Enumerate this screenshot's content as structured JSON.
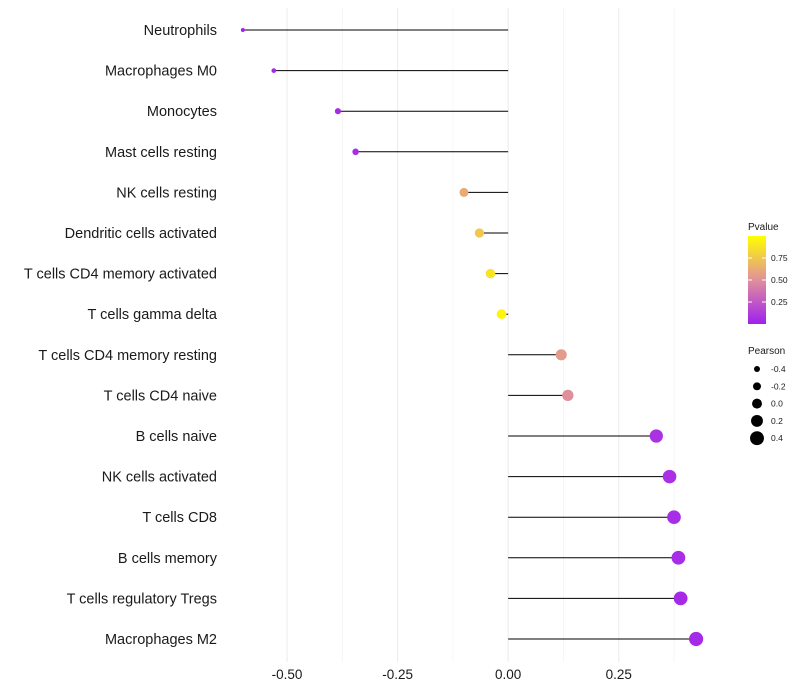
{
  "chart_data": {
    "type": "lollipop",
    "orientation": "horizontal",
    "title": "",
    "xlabel": "",
    "ylabel": "",
    "xlim": [
      -0.62,
      0.47
    ],
    "x_ticks": [
      -0.5,
      -0.25,
      0.0,
      0.25
    ],
    "x_tick_labels": [
      "-0.50",
      "-0.25",
      "0.00",
      "0.25"
    ],
    "baseline": 0,
    "grid": "vertical-major",
    "categories": [
      "Neutrophils",
      "Macrophages M0",
      "Monocytes",
      "Mast cells resting",
      "NK cells resting",
      "Dendritic cells activated",
      "T cells CD4 memory activated",
      "T cells gamma delta",
      "T cells CD4 memory resting",
      "T cells CD4 naive",
      "B cells naive",
      "NK cells activated",
      "T cells CD8",
      "B cells memory",
      "T cells regulatory  Tregs",
      "Macrophages M2"
    ],
    "pearson": [
      -0.6,
      -0.53,
      -0.385,
      -0.345,
      -0.1,
      -0.065,
      -0.04,
      -0.015,
      0.12,
      0.135,
      0.335,
      0.365,
      0.375,
      0.385,
      0.39,
      0.425
    ],
    "pvalue": [
      0.02,
      0.03,
      0.05,
      0.06,
      0.62,
      0.75,
      0.88,
      0.96,
      0.55,
      0.5,
      0.08,
      0.07,
      0.06,
      0.06,
      0.05,
      0.04
    ],
    "color_legend": {
      "title": "Pvalue",
      "ticks": [
        0.25,
        0.5,
        0.75
      ],
      "tick_labels": [
        "0.25",
        "0.50",
        "0.75"
      ],
      "range": [
        0.0,
        1.0
      ],
      "low_color": "#a020f0",
      "mid_color": "#e0909a",
      "high_color": "#ffff00"
    },
    "size_legend": {
      "title": "Pearson",
      "values": [
        -0.4,
        -0.2,
        0.0,
        0.2,
        0.4
      ],
      "labels": [
        "-0.4",
        "-0.2",
        "0.0",
        "0.2",
        "0.4"
      ]
    },
    "legend_position": "right"
  }
}
